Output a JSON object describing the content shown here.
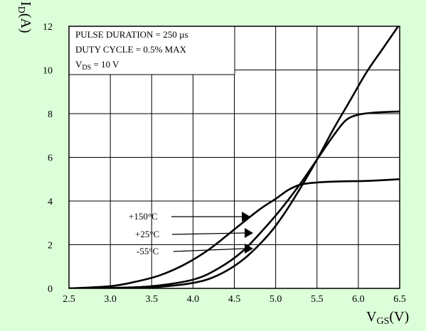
{
  "chart_data": {
    "type": "line",
    "xlabel_main": "V",
    "xlabel_sub": "GS",
    "xlabel_unit": "(V)",
    "ylabel_main": "I",
    "ylabel_sub": "D",
    "ylabel_unit": "(A)",
    "xlim": [
      2.5,
      6.5
    ],
    "ylim": [
      0,
      12
    ],
    "x_ticks": [
      "2.5",
      "3.0",
      "3.5",
      "4.0",
      "4.5",
      "5.0",
      "5.5",
      "6.0",
      "6.5"
    ],
    "y_ticks": [
      "0",
      "2",
      "4",
      "6",
      "8",
      "10",
      "12"
    ],
    "grid": true,
    "annotations": {
      "line1": "PULSE DURATION = 250 µs",
      "line2": "DUTY CYCLE = 0.5% MAX",
      "line3_main": "V",
      "line3_sub": "DS",
      "line3_rest": " = 10 V"
    },
    "series": [
      {
        "name": "+150°C",
        "color": "#000000",
        "x": [
          2.5,
          3.0,
          3.3,
          3.6,
          3.9,
          4.2,
          4.5,
          4.8,
          5.0,
          5.15,
          5.3,
          5.5,
          5.8,
          6.1,
          6.5
        ],
        "y": [
          0,
          0.1,
          0.3,
          0.6,
          1.1,
          1.8,
          2.7,
          3.6,
          4.1,
          4.5,
          4.75,
          4.85,
          4.9,
          4.92,
          5.0
        ]
      },
      {
        "name": "+25°C",
        "color": "#000000",
        "x": [
          2.5,
          3.0,
          3.5,
          4.0,
          4.3,
          4.6,
          4.9,
          5.1,
          5.3,
          5.5,
          5.7,
          5.85,
          6.0,
          6.2,
          6.5
        ],
        "y": [
          0,
          0.02,
          0.1,
          0.4,
          0.9,
          1.7,
          2.9,
          3.8,
          4.8,
          5.9,
          7.0,
          7.7,
          7.95,
          8.05,
          8.1
        ]
      },
      {
        "name": "-55°C",
        "color": "#000000",
        "x": [
          2.5,
          3.0,
          3.5,
          4.0,
          4.3,
          4.6,
          4.9,
          5.1,
          5.3,
          5.5,
          5.7,
          5.9,
          6.1,
          6.3,
          6.5
        ],
        "y": [
          0,
          0.01,
          0.05,
          0.25,
          0.6,
          1.3,
          2.4,
          3.4,
          4.6,
          5.9,
          7.3,
          8.6,
          9.9,
          11.0,
          12.1
        ]
      }
    ],
    "series_labels": [
      "+150°C",
      "+25°C",
      "-55°C"
    ]
  }
}
